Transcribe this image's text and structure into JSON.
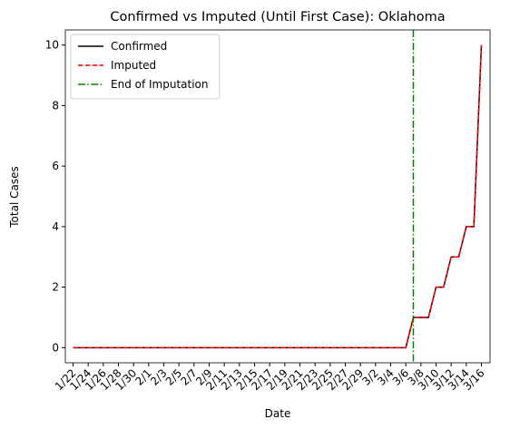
{
  "chart_data": {
    "type": "line",
    "title": "Confirmed vs Imputed (Until First Case): Oklahoma",
    "x_label": "Date",
    "y_label": "Total Cases",
    "categories": [
      "1/22",
      null,
      "1/24",
      null,
      "1/26",
      null,
      "1/28",
      null,
      "1/30",
      null,
      "2/1",
      null,
      "2/3",
      null,
      "2/5",
      null,
      "2/7",
      null,
      "2/9",
      null,
      "2/11",
      null,
      "2/13",
      null,
      "2/15",
      null,
      "2/17",
      null,
      "2/19",
      null,
      "2/21",
      null,
      "2/23",
      null,
      "2/25",
      null,
      "2/27",
      null,
      "2/29",
      null,
      "3/2",
      null,
      "3/4",
      null,
      "3/6",
      null,
      "3/8",
      null,
      "3/10",
      null,
      "3/12",
      null,
      "3/14",
      null,
      "3/16"
    ],
    "series": [
      {
        "name": "Confirmed",
        "color": "#000000",
        "dash": "solid",
        "values": [
          0,
          0,
          0,
          0,
          0,
          0,
          0,
          0,
          0,
          0,
          0,
          0,
          0,
          0,
          0,
          0,
          0,
          0,
          0,
          0,
          0,
          0,
          0,
          0,
          0,
          0,
          0,
          0,
          0,
          0,
          0,
          0,
          0,
          0,
          0,
          0,
          0,
          0,
          0,
          0,
          0,
          0,
          0,
          0,
          0,
          1,
          1,
          1,
          2,
          2,
          3,
          3,
          4,
          4,
          10
        ]
      },
      {
        "name": "Imputed",
        "color": "#ff0000",
        "dash": "dashed",
        "values": [
          0,
          0,
          0,
          0,
          0,
          0,
          0,
          0,
          0,
          0,
          0,
          0,
          0,
          0,
          0,
          0,
          0,
          0,
          0,
          0,
          0,
          0,
          0,
          0,
          0,
          0,
          0,
          0,
          0,
          0,
          0,
          0,
          0,
          0,
          0,
          0,
          0,
          0,
          0,
          0,
          0,
          0,
          0,
          0,
          0,
          1,
          1,
          1,
          2,
          2,
          3,
          3,
          4,
          4,
          10
        ]
      }
    ],
    "vline": {
      "name": "End of Imputation",
      "x": 45,
      "color": "#008000"
    },
    "ylim": [
      -0.5,
      10.5
    ],
    "yticks": [
      0,
      2,
      4,
      6,
      8,
      10
    ],
    "legend": "upper left"
  }
}
